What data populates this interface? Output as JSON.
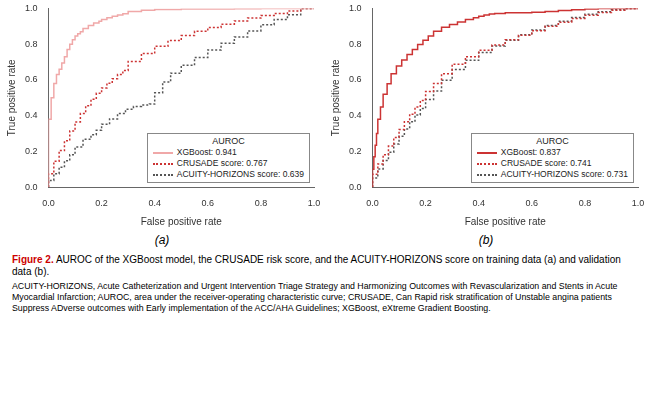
{
  "chart_data": [
    {
      "type": "step",
      "subtitle": "(a)",
      "x_label": "False positive rate",
      "y_label": "True positive rate",
      "xlim": [
        0.0,
        1.0
      ],
      "ylim": [
        0.0,
        1.0
      ],
      "xticks": [
        {
          "value": 0.0,
          "label": "0.0"
        },
        0.2,
        0.4,
        0.6,
        0.8,
        {
          "value": 1.0,
          "label": "1.0"
        }
      ],
      "yticks": [
        {
          "value": 0.0,
          "label": "0.0"
        },
        0.2,
        0.4,
        0.6,
        0.8,
        {
          "value": 1.0,
          "label": "1.0"
        }
      ],
      "grid": false,
      "legend": "lower right",
      "legend_title": "AUROC",
      "series": [
        {
          "name": "XGBoost: 0.941",
          "color": "#f0a8a8",
          "line_style": "solid",
          "x": [
            0.0,
            0.01,
            0.02,
            0.03,
            0.04,
            0.05,
            0.06,
            0.07,
            0.08,
            0.09,
            0.1,
            0.11,
            0.12,
            0.13,
            0.15,
            0.17,
            0.19,
            0.2,
            0.22,
            0.24,
            0.26,
            0.28,
            0.3,
            0.35,
            0.4,
            0.5,
            0.6,
            0.7,
            0.8,
            0.9,
            1.0
          ],
          "values": [
            0.0,
            0.38,
            0.5,
            0.58,
            0.63,
            0.66,
            0.695,
            0.73,
            0.77,
            0.8,
            0.825,
            0.845,
            0.858,
            0.87,
            0.888,
            0.905,
            0.918,
            0.928,
            0.938,
            0.948,
            0.956,
            0.963,
            0.97,
            0.982,
            0.99,
            0.994,
            0.996,
            0.997,
            0.998,
            0.999,
            1.0
          ]
        },
        {
          "name": "CRUSADE score: 0.767",
          "color": "#cc3333",
          "line_style": "dotted",
          "x": [
            0.0,
            0.02,
            0.04,
            0.06,
            0.08,
            0.1,
            0.12,
            0.14,
            0.16,
            0.18,
            0.2,
            0.22,
            0.24,
            0.26,
            0.28,
            0.3,
            0.35,
            0.4,
            0.45,
            0.5,
            0.55,
            0.6,
            0.65,
            0.7,
            0.75,
            0.8,
            0.85,
            0.9,
            0.95,
            1.0
          ],
          "values": [
            0.0,
            0.075,
            0.145,
            0.205,
            0.26,
            0.315,
            0.365,
            0.412,
            0.455,
            0.492,
            0.525,
            0.555,
            0.582,
            0.607,
            0.63,
            0.652,
            0.703,
            0.748,
            0.788,
            0.82,
            0.848,
            0.872,
            0.893,
            0.912,
            0.93,
            0.946,
            0.96,
            0.972,
            0.985,
            1.0
          ]
        },
        {
          "name": "ACUITY-HORIZONS score: 0.639",
          "color": "#555555",
          "line_style": "dotted",
          "x": [
            0.0,
            0.02,
            0.04,
            0.06,
            0.08,
            0.1,
            0.13,
            0.16,
            0.18,
            0.2,
            0.23,
            0.26,
            0.29,
            0.32,
            0.35,
            0.38,
            0.4,
            0.43,
            0.46,
            0.5,
            0.55,
            0.6,
            0.65,
            0.7,
            0.75,
            0.8,
            0.85,
            0.9,
            0.95,
            1.0
          ],
          "values": [
            0.0,
            0.038,
            0.075,
            0.112,
            0.148,
            0.182,
            0.225,
            0.268,
            0.293,
            0.318,
            0.352,
            0.382,
            0.412,
            0.436,
            0.452,
            0.46,
            0.465,
            0.528,
            0.588,
            0.638,
            0.682,
            0.726,
            0.768,
            0.805,
            0.84,
            0.874,
            0.908,
            0.938,
            0.965,
            1.0
          ]
        }
      ]
    },
    {
      "type": "step",
      "subtitle": "(b)",
      "x_label": "False positive rate",
      "y_label": "True positive rate",
      "xlim": [
        0.0,
        1.0
      ],
      "ylim": [
        0.0,
        1.0
      ],
      "xticks": [
        {
          "value": 0.0,
          "label": "0.0"
        },
        0.2,
        0.4,
        0.6,
        0.8,
        {
          "value": 1.0,
          "label": "1.0"
        }
      ],
      "yticks": [
        {
          "value": 0.0,
          "label": "0.0"
        },
        0.2,
        0.4,
        0.6,
        0.8,
        {
          "value": 1.0,
          "label": "1.0"
        }
      ],
      "grid": false,
      "legend": "lower right",
      "legend_title": "AUROC",
      "series": [
        {
          "name": "XGBoost: 0.837",
          "color": "#cc3333",
          "line_style": "solid",
          "x": [
            0.0,
            0.005,
            0.01,
            0.015,
            0.02,
            0.03,
            0.04,
            0.055,
            0.07,
            0.09,
            0.11,
            0.13,
            0.15,
            0.17,
            0.19,
            0.21,
            0.23,
            0.26,
            0.29,
            0.32,
            0.35,
            0.38,
            0.4,
            0.42,
            0.44,
            0.46,
            0.5,
            0.55,
            0.6,
            0.65,
            0.7,
            0.75,
            0.8,
            0.85,
            0.875,
            0.89,
            1.0
          ],
          "values": [
            0.0,
            0.1,
            0.17,
            0.235,
            0.3,
            0.38,
            0.448,
            0.52,
            0.578,
            0.635,
            0.678,
            0.712,
            0.742,
            0.77,
            0.798,
            0.822,
            0.845,
            0.872,
            0.895,
            0.91,
            0.924,
            0.938,
            0.948,
            0.956,
            0.963,
            0.969,
            0.972,
            0.975,
            0.976,
            0.978,
            0.982,
            0.988,
            0.992,
            0.996,
            1.0,
            1.0,
            1.0
          ]
        },
        {
          "name": "CRUSADE score: 0.741",
          "color": "#cc3333",
          "line_style": "dotted",
          "x": [
            0.0,
            0.02,
            0.04,
            0.06,
            0.08,
            0.1,
            0.12,
            0.14,
            0.16,
            0.18,
            0.2,
            0.23,
            0.26,
            0.3,
            0.35,
            0.4,
            0.45,
            0.5,
            0.55,
            0.6,
            0.65,
            0.7,
            0.75,
            0.8,
            0.85,
            0.9,
            0.95,
            1.0
          ],
          "values": [
            0.0,
            0.072,
            0.13,
            0.182,
            0.23,
            0.278,
            0.323,
            0.366,
            0.408,
            0.448,
            0.485,
            0.535,
            0.58,
            0.635,
            0.688,
            0.73,
            0.766,
            0.796,
            0.824,
            0.85,
            0.875,
            0.9,
            0.923,
            0.944,
            0.962,
            0.977,
            0.99,
            1.0
          ]
        },
        {
          "name": "ACUITY-HORIZONS score: 0.731",
          "color": "#555555",
          "line_style": "dotted",
          "x": [
            0.0,
            0.02,
            0.04,
            0.06,
            0.08,
            0.1,
            0.12,
            0.14,
            0.16,
            0.18,
            0.2,
            0.23,
            0.26,
            0.3,
            0.35,
            0.4,
            0.45,
            0.5,
            0.55,
            0.6,
            0.65,
            0.7,
            0.75,
            0.8,
            0.85,
            0.9,
            0.95,
            1.0
          ],
          "values": [
            0.0,
            0.052,
            0.102,
            0.15,
            0.196,
            0.242,
            0.285,
            0.326,
            0.366,
            0.404,
            0.44,
            0.49,
            0.538,
            0.598,
            0.658,
            0.71,
            0.754,
            0.79,
            0.822,
            0.852,
            0.879,
            0.905,
            0.928,
            0.949,
            0.967,
            0.981,
            0.992,
            1.0
          ]
        }
      ]
    }
  ],
  "annotations": [
    {
      "text": "Figure 2.",
      "color": "#cc0000"
    },
    {
      "text": " AUROC of the XGBoost model, the CRUSADE risk score, and the ACUITY-HORIZONS score on training data (a) and validation data (b)."
    },
    {
      "text": "ACUITY-HORIZONS, Acute Catheterization and Urgent Intervention Triage Strategy and Harmonizing Outcomes with Revascularization and Stents in Acute Myocardial Infarction; AUROC, area under the receiver-operating characteristic curve; CRUSADE, Can Rapid risk stratification of Unstable angina patients Suppress ADverse outcomes with Early implementation of the ACC/AHA Guidelines; XGBoost, eXtreme Gradient Boosting."
    }
  ]
}
